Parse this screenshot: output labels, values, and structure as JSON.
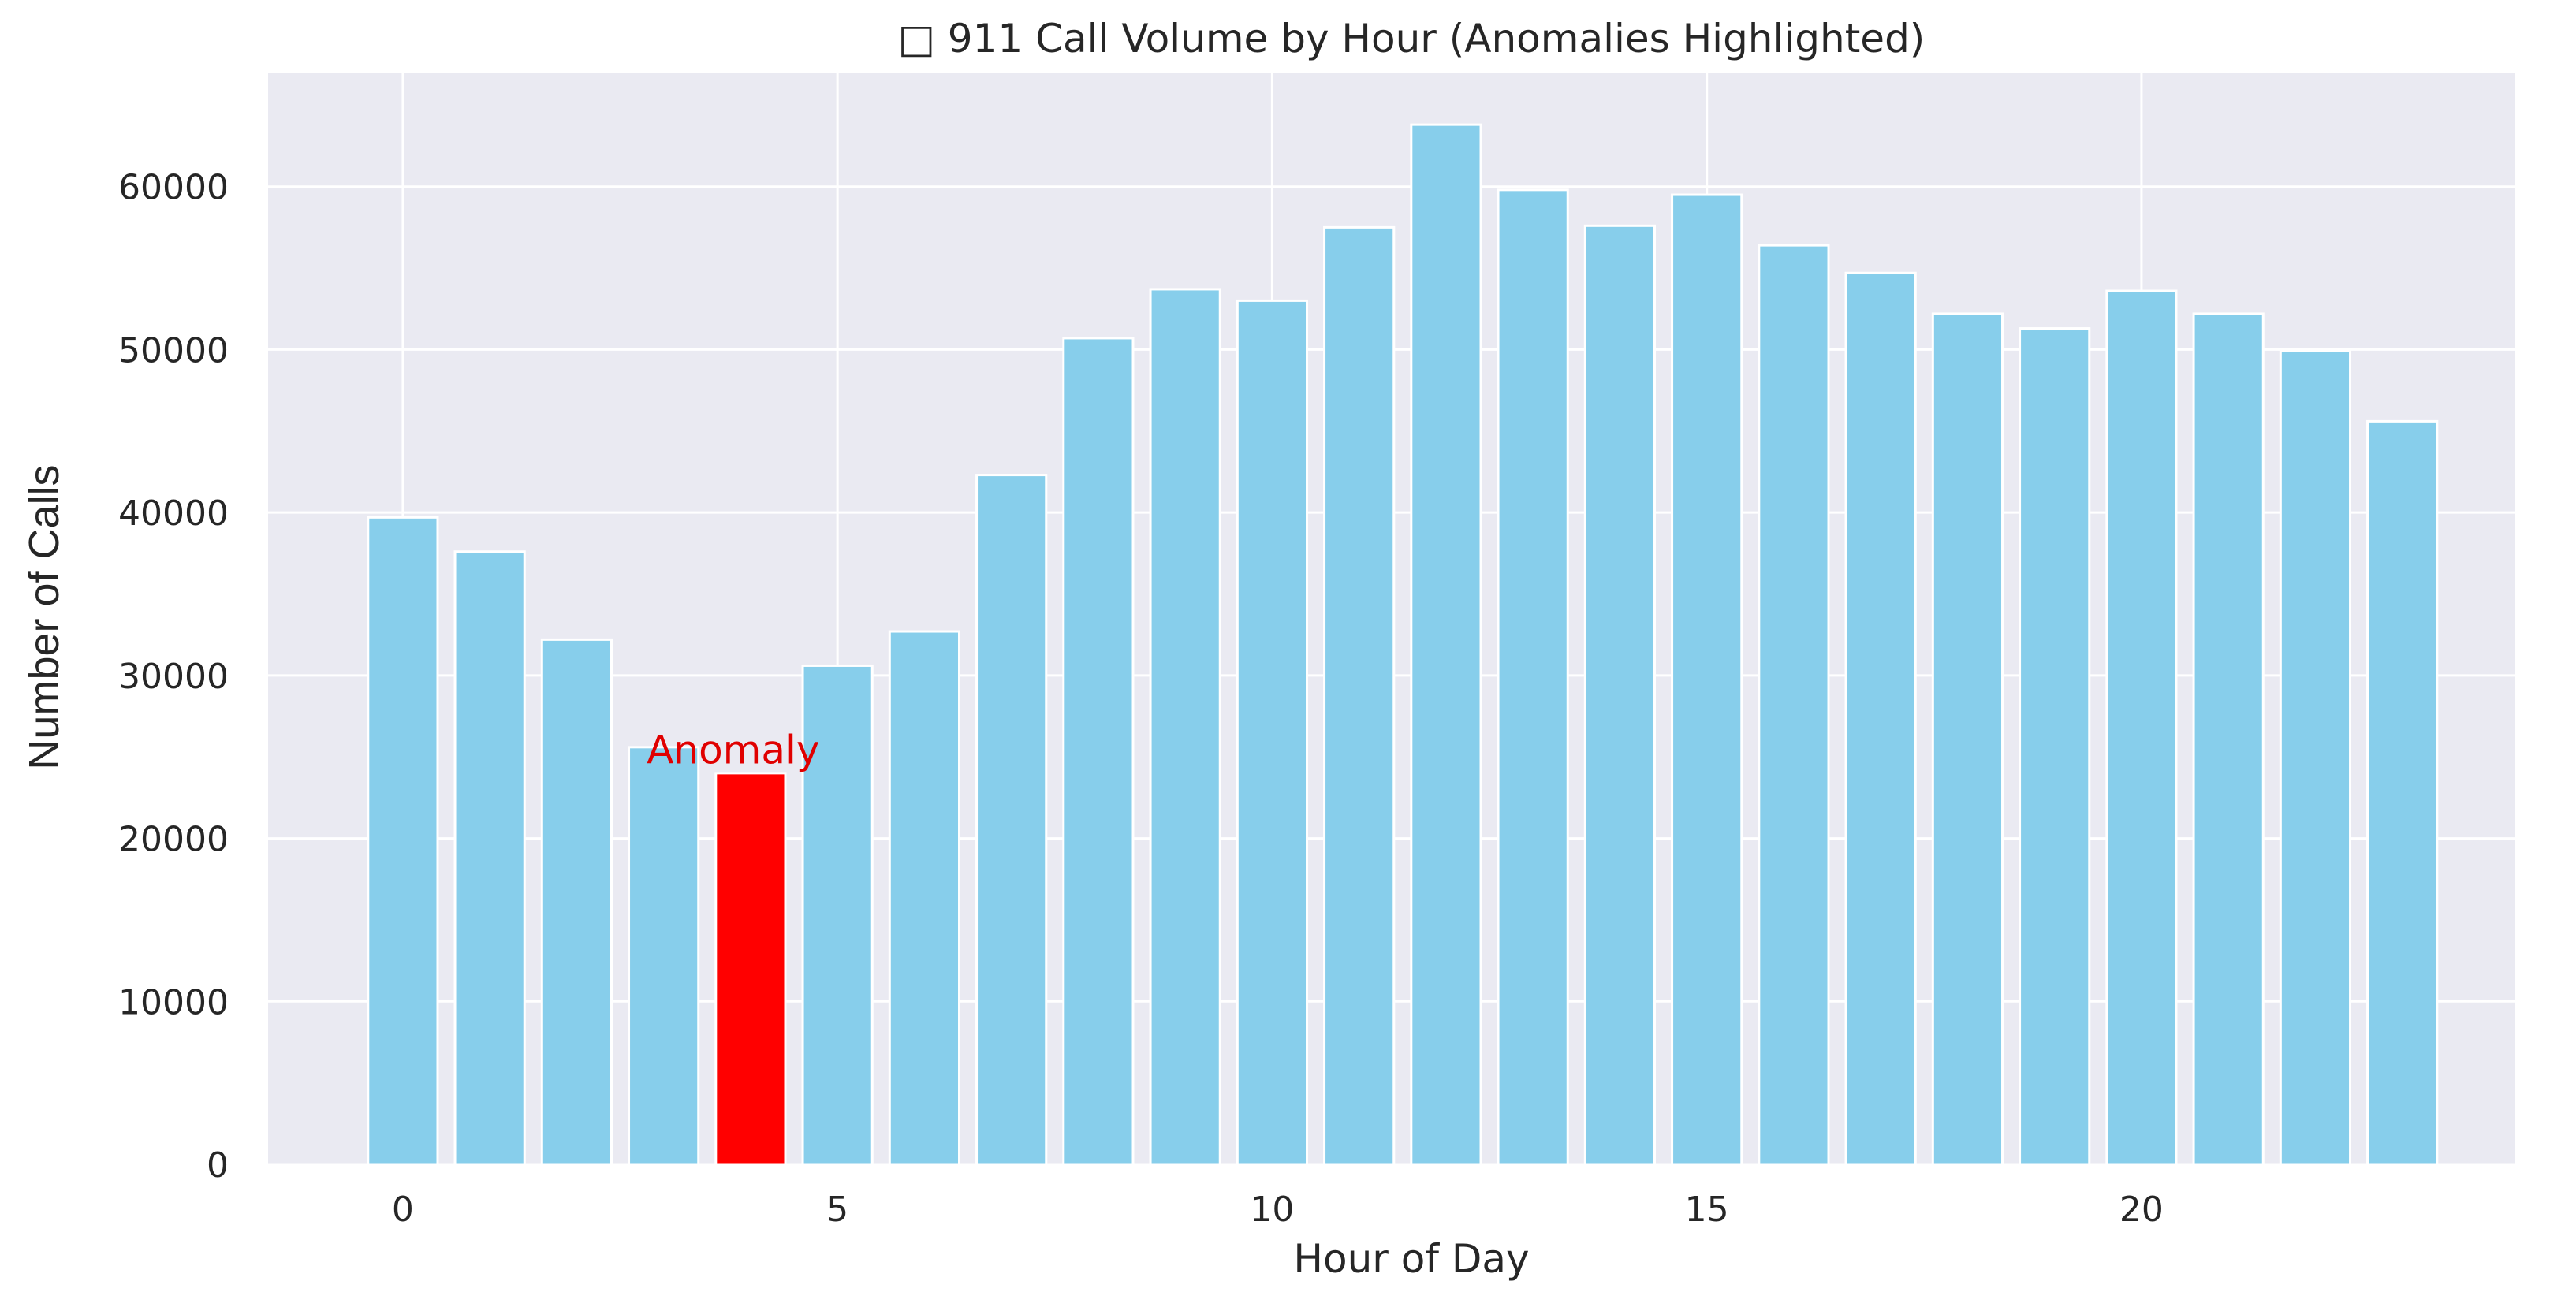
{
  "chart_data": {
    "type": "bar",
    "title": "□ 911 Call Volume by Hour (Anomalies Highlighted)",
    "xlabel": "Hour of Day",
    "ylabel": "Number of Calls",
    "x": [
      0,
      1,
      2,
      3,
      4,
      5,
      6,
      7,
      8,
      9,
      10,
      11,
      12,
      13,
      14,
      15,
      16,
      17,
      18,
      19,
      20,
      21,
      22,
      23
    ],
    "values": [
      39700,
      37600,
      32200,
      25600,
      24000,
      30600,
      32700,
      42300,
      50700,
      53700,
      53000,
      57500,
      63800,
      59800,
      57600,
      59500,
      56400,
      54700,
      52200,
      51300,
      53600,
      52200,
      49900,
      45600
    ],
    "anomalies": [
      4
    ],
    "xlim": [
      -1.55,
      24.3
    ],
    "ylim": [
      0,
      67000
    ],
    "xticks": [
      0,
      5,
      10,
      15,
      20
    ],
    "yticks": [
      0,
      10000,
      20000,
      30000,
      40000,
      50000,
      60000
    ],
    "grid": true,
    "colors": {
      "bar": "#87CEEB",
      "anomaly_bar": "#FF0000",
      "annotation_text": "#E00000",
      "plot_background": "#EAEAF2",
      "grid": "#FFFFFF"
    },
    "annotations": [
      {
        "text": "Anomaly",
        "x": 3.8,
        "y": 24600
      }
    ]
  }
}
